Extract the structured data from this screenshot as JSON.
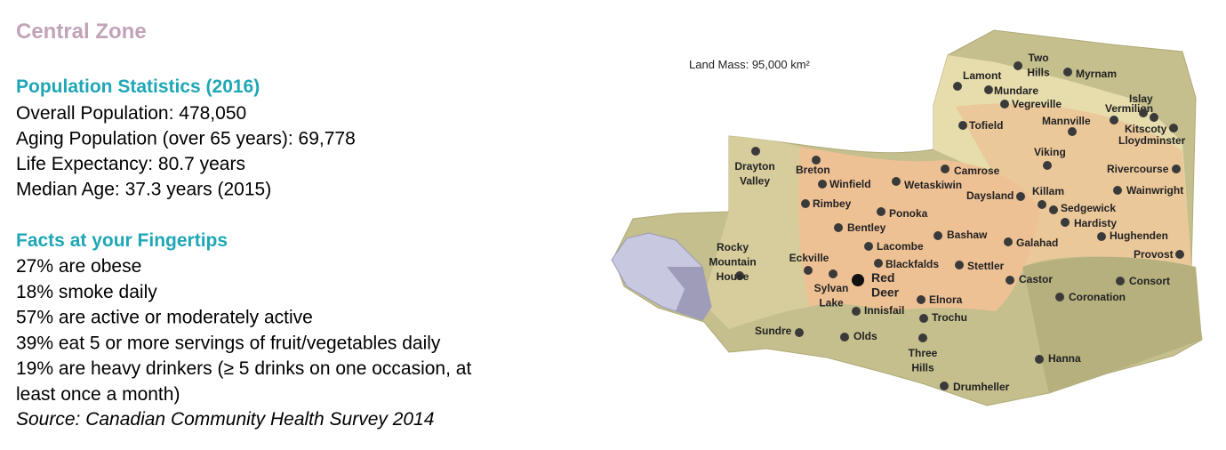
{
  "header": {
    "title": "Central Zone"
  },
  "population": {
    "heading": "Population Statistics (2016)",
    "lines": [
      "Overall Population: 478,050",
      "Aging Population (over 65 years): 69,778",
      "Life Expectancy: 80.7 years",
      "Median Age: 37.3 years (2015)"
    ]
  },
  "facts": {
    "heading": "Facts at your Fingertips",
    "lines": [
      "27% are obese",
      "18% smoke daily",
      "57% are active or moderately active",
      "39% eat 5 or more servings of fruit/vegetables daily",
      "19% are heavy drinkers (≥ 5 drinks on one occasion, at",
      "least once a month)"
    ],
    "source": "Source: Canadian Community Health Survey 2014"
  },
  "map": {
    "land_mass": "Land Mass: 95,000 km²",
    "towns": [
      [
        "Lamont"
      ],
      [
        "Two",
        "Hills"
      ],
      [
        "Myrnam"
      ],
      [
        "Mundare"
      ],
      [
        "Vegreville"
      ],
      [
        "Tofield"
      ],
      [
        "Mannville"
      ],
      [
        "Vermilion"
      ],
      [
        "Islay"
      ],
      [
        "Kitscoty"
      ],
      [
        "Lloydminster"
      ],
      [
        "Drayton",
        "Valley"
      ],
      [
        "Breton"
      ],
      [
        "Winfield"
      ],
      [
        "Wetaskiwin"
      ],
      [
        "Camrose"
      ],
      [
        "Viking"
      ],
      [
        "Rivercourse"
      ],
      [
        "Wainwright"
      ],
      [
        "Daysland"
      ],
      [
        "Killam"
      ],
      [
        "Sedgewick"
      ],
      [
        "Rimbey"
      ],
      [
        "Ponoka"
      ],
      [
        "Hardisty"
      ],
      [
        "Bentley"
      ],
      [
        "Bashaw"
      ],
      [
        "Hughenden"
      ],
      [
        "Lacombe"
      ],
      [
        "Galahad"
      ],
      [
        "Rocky",
        "Mountain",
        "House"
      ],
      [
        "Eckville"
      ],
      [
        "Blackfalds"
      ],
      [
        "Stettler"
      ],
      [
        "Provost"
      ],
      [
        "Red",
        "Deer"
      ],
      [
        "Sylvan",
        "Lake"
      ],
      [
        "Castor"
      ],
      [
        "Consort"
      ],
      [
        "Elnora"
      ],
      [
        "Coronation"
      ],
      [
        "Innisfail"
      ],
      [
        "Trochu"
      ],
      [
        "Sundre"
      ],
      [
        "Olds"
      ],
      [
        "Three",
        "Hills"
      ],
      [
        "Hanna"
      ],
      [
        "Drumheller"
      ]
    ]
  }
}
